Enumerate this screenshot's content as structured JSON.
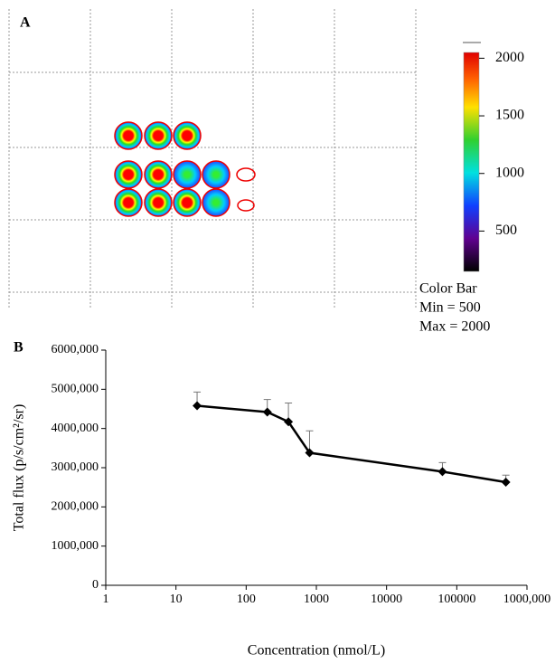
{
  "panel_a": {
    "label": "A",
    "colorbar": {
      "lim": [
        150,
        2050
      ],
      "ticks": [
        2000,
        1500,
        1000,
        500
      ],
      "caption": [
        "Color Bar",
        "Min = 500",
        "Max = 2000"
      ]
    }
  },
  "chart_data": {
    "type": "line",
    "panel_label": "B",
    "x_label": "Concentration (nmol/L)",
    "y_label": "Total flux (p/s/cm²/sr)",
    "x": [
      20,
      200,
      400,
      800,
      62500,
      500000
    ],
    "series": [
      {
        "color": "#000000",
        "values": [
          4580000,
          4420000,
          4170000,
          3380000,
          2900000,
          2630000
        ],
        "errors": [
          350000,
          320000,
          480000,
          560000,
          230000,
          180000
        ]
      }
    ],
    "x_log": true,
    "xlim": [
      1,
      1000000
    ],
    "xticks": [
      1,
      10,
      100,
      1000,
      10000,
      100000,
      {
        "value": 1000000,
        "label": "1000,000"
      }
    ],
    "ylim": [
      0,
      6000000
    ],
    "yticks": [
      0,
      {
        "value": 1000000,
        "label": "1000,000"
      },
      {
        "value": 2000000,
        "label": "2000,000"
      },
      {
        "value": 3000000,
        "label": "3000,000"
      },
      {
        "value": 4000000,
        "label": "4000,000"
      },
      {
        "value": 5000000,
        "label": "5000,000"
      },
      {
        "value": 6000000,
        "label": "6000,000"
      }
    ]
  }
}
